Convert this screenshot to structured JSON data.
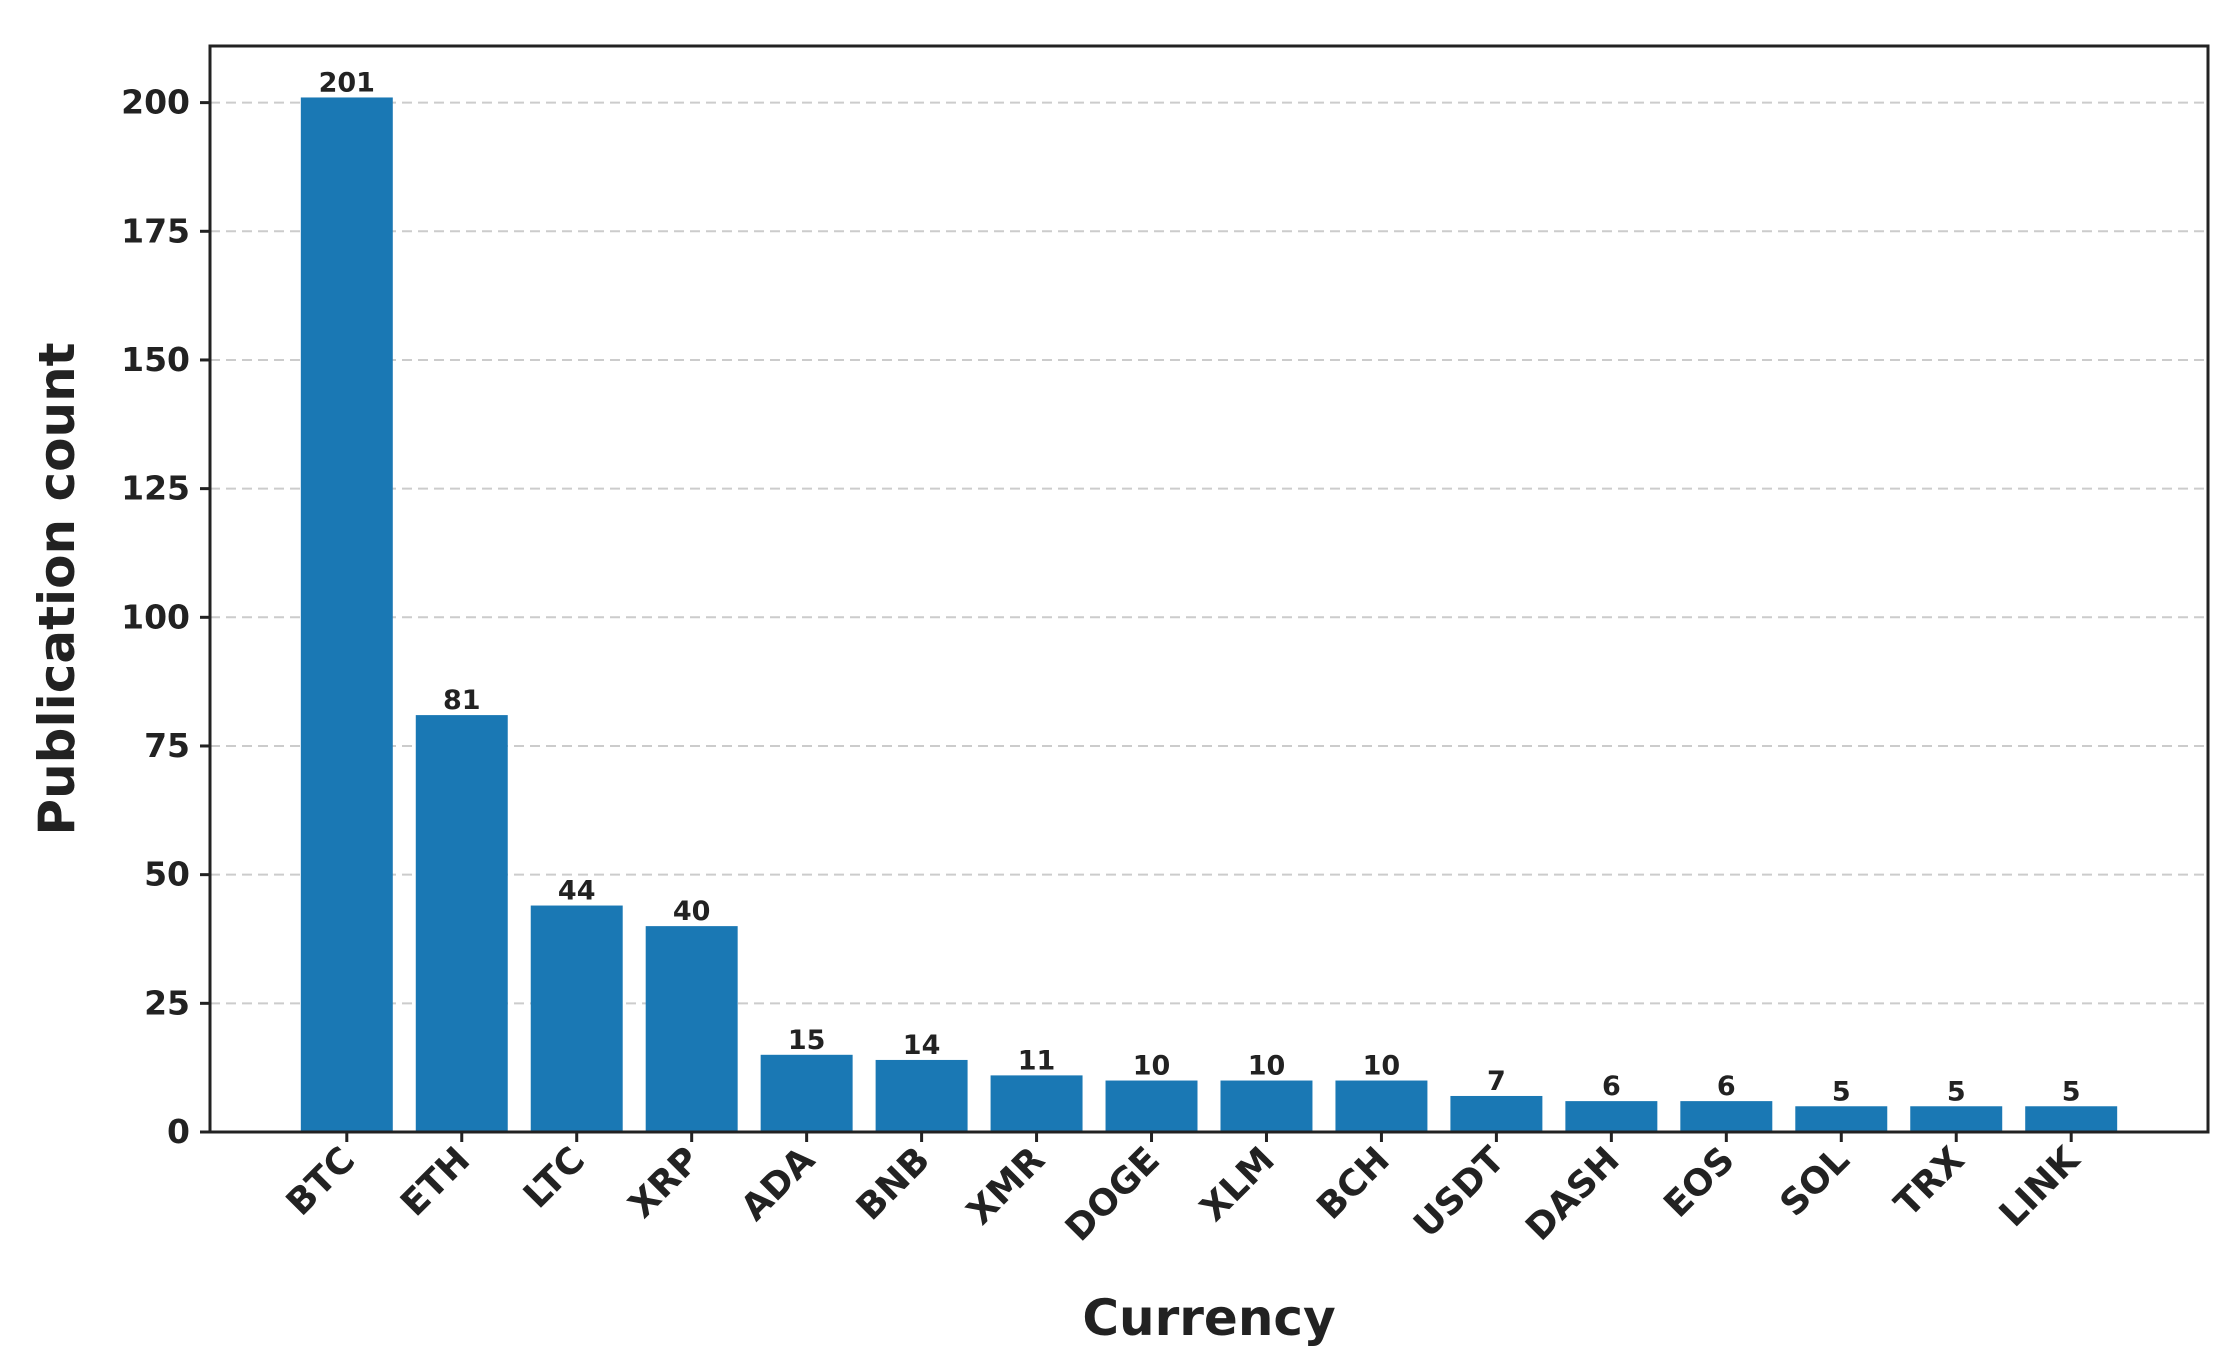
{
  "chart_data": {
    "type": "bar",
    "title": "",
    "xlabel": "Currency",
    "ylabel": "Publication count",
    "categories": [
      "BTC",
      "ETH",
      "LTC",
      "XRP",
      "ADA",
      "BNB",
      "XMR",
      "DOGE",
      "XLM",
      "BCH",
      "USDT",
      "DASH",
      "EOS",
      "SOL",
      "TRX",
      "LINK"
    ],
    "values": [
      201,
      81,
      44,
      40,
      15,
      14,
      11,
      10,
      10,
      10,
      7,
      6,
      6,
      5,
      5,
      5
    ],
    "data_labels": [
      "201",
      "81",
      "44",
      "40",
      "15",
      "14",
      "11",
      "10",
      "10",
      "10",
      "7",
      "6",
      "6",
      "5",
      "5",
      "5"
    ],
    "ylim": [
      0,
      211
    ],
    "yticks": [
      0,
      25,
      50,
      75,
      100,
      125,
      150,
      175,
      200
    ],
    "ytick_labels": [
      "0",
      "25",
      "50",
      "75",
      "100",
      "125",
      "150",
      "175",
      "200"
    ],
    "grid": "y-dashed",
    "bar_color": "#1a78b4",
    "grid_color": "#cccccc",
    "text_color": "#222222"
  }
}
